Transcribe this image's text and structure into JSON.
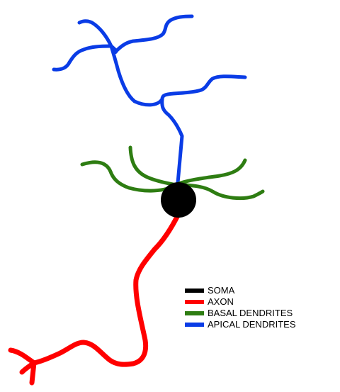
{
  "colors": {
    "soma": "#000000",
    "axon": "#ff0000",
    "basal_dendrites": "#2e7d12",
    "apical_dendrites": "#0a3ce6"
  },
  "legend": {
    "items": [
      {
        "key": "soma",
        "label": "SOMA",
        "color": "#000000"
      },
      {
        "key": "axon",
        "label": "AXON",
        "color": "#ff0000"
      },
      {
        "key": "basal_dendrites",
        "label": "BASAL DENDRITES",
        "color": "#2e7d12"
      },
      {
        "key": "apical_dendrites",
        "label": "APICAL DENDRITES",
        "color": "#0a3ce6"
      }
    ]
  }
}
